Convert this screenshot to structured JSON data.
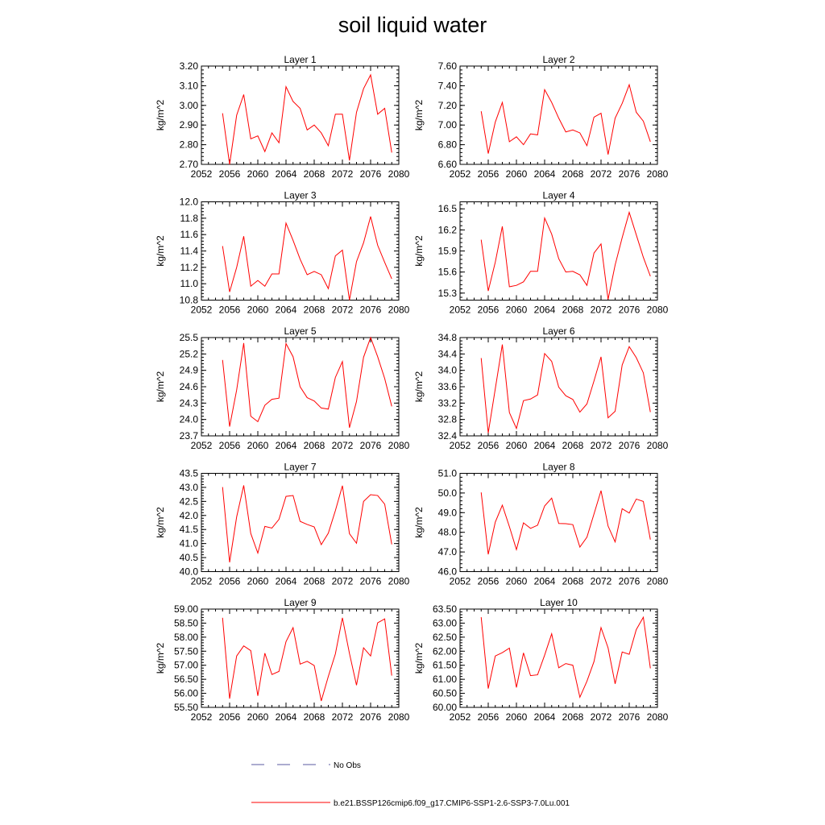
{
  "title": "soil liquid water",
  "colors": {
    "model_line": "#ff0000",
    "obs_line": "#5a5aa0",
    "axis": "#000000"
  },
  "legend": {
    "obs_label": "No Obs",
    "model_label": "b.e21.BSSP126cmip6.f09_g17.CMIP6-SSP1-2.6-SSP3-7.0Lu.001"
  },
  "chart_data": [
    {
      "type": "line",
      "title": "Layer 1",
      "ylabel": "kg/m^2",
      "x": [
        2055,
        2056,
        2057,
        2058,
        2059,
        2060,
        2061,
        2062,
        2063,
        2064,
        2065,
        2066,
        2067,
        2068,
        2069,
        2070,
        2071,
        2072,
        2073,
        2074,
        2075,
        2076,
        2077,
        2078,
        2079
      ],
      "xlim": [
        2052,
        2080
      ],
      "xticks": [
        "2052",
        "2056",
        "2060",
        "2064",
        "2068",
        "2072",
        "2076",
        "2080"
      ],
      "ylim": [
        2.7,
        3.2
      ],
      "yticks": [
        "2.70",
        "2.80",
        "2.90",
        "3.00",
        "3.10",
        "3.20"
      ],
      "series": [
        {
          "values": [
            2.96,
            2.7,
            2.95,
            3.055,
            2.83,
            2.845,
            2.765,
            2.86,
            2.81,
            3.095,
            3.02,
            2.985,
            2.875,
            2.9,
            2.86,
            2.795,
            2.955,
            2.955,
            2.72,
            2.965,
            3.085,
            3.155,
            2.955,
            2.985,
            2.76
          ]
        }
      ]
    },
    {
      "type": "line",
      "title": "Layer 2",
      "ylabel": "kg/m^2",
      "x": [
        2055,
        2056,
        2057,
        2058,
        2059,
        2060,
        2061,
        2062,
        2063,
        2064,
        2065,
        2066,
        2067,
        2068,
        2069,
        2070,
        2071,
        2072,
        2073,
        2074,
        2075,
        2076,
        2077,
        2078,
        2079
      ],
      "xlim": [
        2052,
        2080
      ],
      "xticks": [
        "2052",
        "2056",
        "2060",
        "2064",
        "2068",
        "2072",
        "2076",
        "2080"
      ],
      "ylim": [
        6.6,
        7.6
      ],
      "yticks": [
        "6.60",
        "6.80",
        "7.00",
        "7.20",
        "7.40",
        "7.60"
      ],
      "series": [
        {
          "values": [
            7.14,
            6.71,
            7.03,
            7.23,
            6.83,
            6.88,
            6.8,
            6.91,
            6.9,
            7.36,
            7.23,
            7.07,
            6.93,
            6.95,
            6.92,
            6.79,
            7.08,
            7.12,
            6.7,
            7.07,
            7.22,
            7.41,
            7.13,
            7.04,
            6.83
          ]
        }
      ]
    },
    {
      "type": "line",
      "title": "Layer 3",
      "ylabel": "kg/m^2",
      "x": [
        2055,
        2056,
        2057,
        2058,
        2059,
        2060,
        2061,
        2062,
        2063,
        2064,
        2065,
        2066,
        2067,
        2068,
        2069,
        2070,
        2071,
        2072,
        2073,
        2074,
        2075,
        2076,
        2077,
        2078,
        2079
      ],
      "xlim": [
        2052,
        2080
      ],
      "xticks": [
        "2052",
        "2056",
        "2060",
        "2064",
        "2068",
        "2072",
        "2076",
        "2080"
      ],
      "ylim": [
        10.8,
        12.0
      ],
      "yticks": [
        "10.8",
        "11.0",
        "11.2",
        "11.4",
        "11.6",
        "11.8",
        "12.0"
      ],
      "series": [
        {
          "values": [
            11.46,
            10.9,
            11.2,
            11.58,
            10.97,
            11.04,
            10.97,
            11.12,
            11.12,
            11.74,
            11.53,
            11.3,
            11.11,
            11.15,
            11.11,
            10.94,
            11.34,
            11.41,
            10.8,
            11.27,
            11.5,
            11.82,
            11.47,
            11.26,
            11.06
          ]
        }
      ]
    },
    {
      "type": "line",
      "title": "Layer 4",
      "ylabel": "kg/m^2",
      "x": [
        2055,
        2056,
        2057,
        2058,
        2059,
        2060,
        2061,
        2062,
        2063,
        2064,
        2065,
        2066,
        2067,
        2068,
        2069,
        2070,
        2071,
        2072,
        2073,
        2074,
        2075,
        2076,
        2077,
        2078,
        2079
      ],
      "xlim": [
        2052,
        2080
      ],
      "xticks": [
        "2052",
        "2056",
        "2060",
        "2064",
        "2068",
        "2072",
        "2076",
        "2080"
      ],
      "ylim": [
        15.2,
        16.6
      ],
      "yticks": [
        "15.3",
        "15.6",
        "15.9",
        "16.2",
        "16.5"
      ],
      "series": [
        {
          "values": [
            16.06,
            15.33,
            15.74,
            16.25,
            15.39,
            15.41,
            15.46,
            15.61,
            15.61,
            16.37,
            16.14,
            15.79,
            15.6,
            15.61,
            15.56,
            15.41,
            15.87,
            16.0,
            15.21,
            15.7,
            16.09,
            16.45,
            16.13,
            15.81,
            15.54
          ]
        }
      ]
    },
    {
      "type": "line",
      "title": "Layer 5",
      "ylabel": "kg/m^2",
      "x": [
        2055,
        2056,
        2057,
        2058,
        2059,
        2060,
        2061,
        2062,
        2063,
        2064,
        2065,
        2066,
        2067,
        2068,
        2069,
        2070,
        2071,
        2072,
        2073,
        2074,
        2075,
        2076,
        2077,
        2078,
        2079
      ],
      "xlim": [
        2052,
        2080
      ],
      "xticks": [
        "2052",
        "2056",
        "2060",
        "2064",
        "2068",
        "2072",
        "2076",
        "2080"
      ],
      "ylim": [
        23.7,
        25.5
      ],
      "yticks": [
        "23.7",
        "24.0",
        "24.3",
        "24.6",
        "24.9",
        "25.2",
        "25.5"
      ],
      "series": [
        {
          "values": [
            25.09,
            23.87,
            24.54,
            25.4,
            24.06,
            23.96,
            24.26,
            24.37,
            24.39,
            25.39,
            25.15,
            24.6,
            24.4,
            24.34,
            24.21,
            24.19,
            24.77,
            25.06,
            23.85,
            24.33,
            25.14,
            25.5,
            25.15,
            24.75,
            24.24
          ]
        }
      ]
    },
    {
      "type": "line",
      "title": "Layer 6",
      "ylabel": "kg/m^2",
      "x": [
        2055,
        2056,
        2057,
        2058,
        2059,
        2060,
        2061,
        2062,
        2063,
        2064,
        2065,
        2066,
        2067,
        2068,
        2069,
        2070,
        2071,
        2072,
        2073,
        2074,
        2075,
        2076,
        2077,
        2078,
        2079
      ],
      "xlim": [
        2052,
        2080
      ],
      "xticks": [
        "2052",
        "2056",
        "2060",
        "2064",
        "2068",
        "2072",
        "2076",
        "2080"
      ],
      "ylim": [
        32.4,
        34.8
      ],
      "yticks": [
        "32.4",
        "32.8",
        "33.2",
        "33.6",
        "34.0",
        "34.4",
        "34.8"
      ],
      "series": [
        {
          "values": [
            34.3,
            32.47,
            33.55,
            34.63,
            32.97,
            32.58,
            33.26,
            33.3,
            33.4,
            34.41,
            34.22,
            33.59,
            33.38,
            33.29,
            32.98,
            33.18,
            33.74,
            34.33,
            32.84,
            33.0,
            34.13,
            34.58,
            34.31,
            33.94,
            32.98
          ]
        }
      ]
    },
    {
      "type": "line",
      "title": "Layer 7",
      "ylabel": "kg/m^2",
      "x": [
        2055,
        2056,
        2057,
        2058,
        2059,
        2060,
        2061,
        2062,
        2063,
        2064,
        2065,
        2066,
        2067,
        2068,
        2069,
        2070,
        2071,
        2072,
        2073,
        2074,
        2075,
        2076,
        2077,
        2078,
        2079
      ],
      "xlim": [
        2052,
        2080
      ],
      "xticks": [
        "2052",
        "2056",
        "2060",
        "2064",
        "2068",
        "2072",
        "2076",
        "2080"
      ],
      "ylim": [
        40.0,
        43.5
      ],
      "yticks": [
        "40.0",
        "40.5",
        "41.0",
        "41.5",
        "42.0",
        "42.5",
        "43.0",
        "43.5"
      ],
      "series": [
        {
          "values": [
            43.01,
            40.33,
            41.95,
            43.07,
            41.36,
            40.66,
            41.61,
            41.55,
            41.86,
            42.68,
            42.71,
            41.79,
            41.68,
            41.59,
            40.96,
            41.37,
            42.17,
            43.06,
            41.35,
            41.01,
            42.5,
            42.74,
            42.71,
            42.4,
            40.97
          ]
        }
      ]
    },
    {
      "type": "line",
      "title": "Layer 8",
      "ylabel": "kg/m^2",
      "x": [
        2055,
        2056,
        2057,
        2058,
        2059,
        2060,
        2061,
        2062,
        2063,
        2064,
        2065,
        2066,
        2067,
        2068,
        2069,
        2070,
        2071,
        2072,
        2073,
        2074,
        2075,
        2076,
        2077,
        2078,
        2079
      ],
      "xlim": [
        2052,
        2080
      ],
      "xticks": [
        "2052",
        "2056",
        "2060",
        "2064",
        "2068",
        "2072",
        "2076",
        "2080"
      ],
      "ylim": [
        46.0,
        51.0
      ],
      "yticks": [
        "46.0",
        "47.0",
        "48.0",
        "49.0",
        "50.0",
        "51.0"
      ],
      "series": [
        {
          "values": [
            50.03,
            46.88,
            48.52,
            49.38,
            48.29,
            47.12,
            48.48,
            48.2,
            48.36,
            49.34,
            49.74,
            48.45,
            48.44,
            48.39,
            47.25,
            47.75,
            48.93,
            50.12,
            48.32,
            47.51,
            49.2,
            48.98,
            49.69,
            49.57,
            47.63
          ]
        }
      ]
    },
    {
      "type": "line",
      "title": "Layer 9",
      "ylabel": "kg/m^2",
      "x": [
        2055,
        2056,
        2057,
        2058,
        2059,
        2060,
        2061,
        2062,
        2063,
        2064,
        2065,
        2066,
        2067,
        2068,
        2069,
        2070,
        2071,
        2072,
        2073,
        2074,
        2075,
        2076,
        2077,
        2078,
        2079
      ],
      "xlim": [
        2052,
        2080
      ],
      "xticks": [
        "2052",
        "2056",
        "2060",
        "2064",
        "2068",
        "2072",
        "2076",
        "2080"
      ],
      "ylim": [
        55.5,
        59.0
      ],
      "yticks": [
        "55.50",
        "56.00",
        "56.50",
        "57.00",
        "57.50",
        "58.00",
        "58.50",
        "59.00"
      ],
      "series": [
        {
          "values": [
            58.69,
            55.81,
            57.33,
            57.69,
            57.52,
            55.91,
            57.43,
            56.67,
            56.78,
            57.84,
            58.34,
            57.04,
            57.14,
            56.99,
            55.73,
            56.6,
            57.4,
            58.69,
            57.42,
            56.29,
            57.62,
            57.33,
            58.51,
            58.65,
            56.63
          ]
        }
      ]
    },
    {
      "type": "line",
      "title": "Layer 10",
      "ylabel": "kg/m^2",
      "x": [
        2055,
        2056,
        2057,
        2058,
        2059,
        2060,
        2061,
        2062,
        2063,
        2064,
        2065,
        2066,
        2067,
        2068,
        2069,
        2070,
        2071,
        2072,
        2073,
        2074,
        2075,
        2076,
        2077,
        2078,
        2079
      ],
      "xlim": [
        2052,
        2080
      ],
      "xticks": [
        "2052",
        "2056",
        "2060",
        "2064",
        "2068",
        "2072",
        "2076",
        "2080"
      ],
      "ylim": [
        60.0,
        63.5
      ],
      "yticks": [
        "60.00",
        "60.50",
        "61.00",
        "61.50",
        "62.00",
        "62.50",
        "63.00",
        "63.50"
      ],
      "series": [
        {
          "values": [
            63.21,
            60.67,
            61.83,
            61.95,
            62.11,
            60.71,
            61.94,
            61.13,
            61.16,
            61.86,
            62.62,
            61.41,
            61.56,
            61.5,
            60.36,
            60.93,
            61.63,
            62.84,
            62.12,
            60.84,
            61.97,
            61.89,
            62.77,
            63.21,
            61.39
          ]
        }
      ]
    }
  ]
}
